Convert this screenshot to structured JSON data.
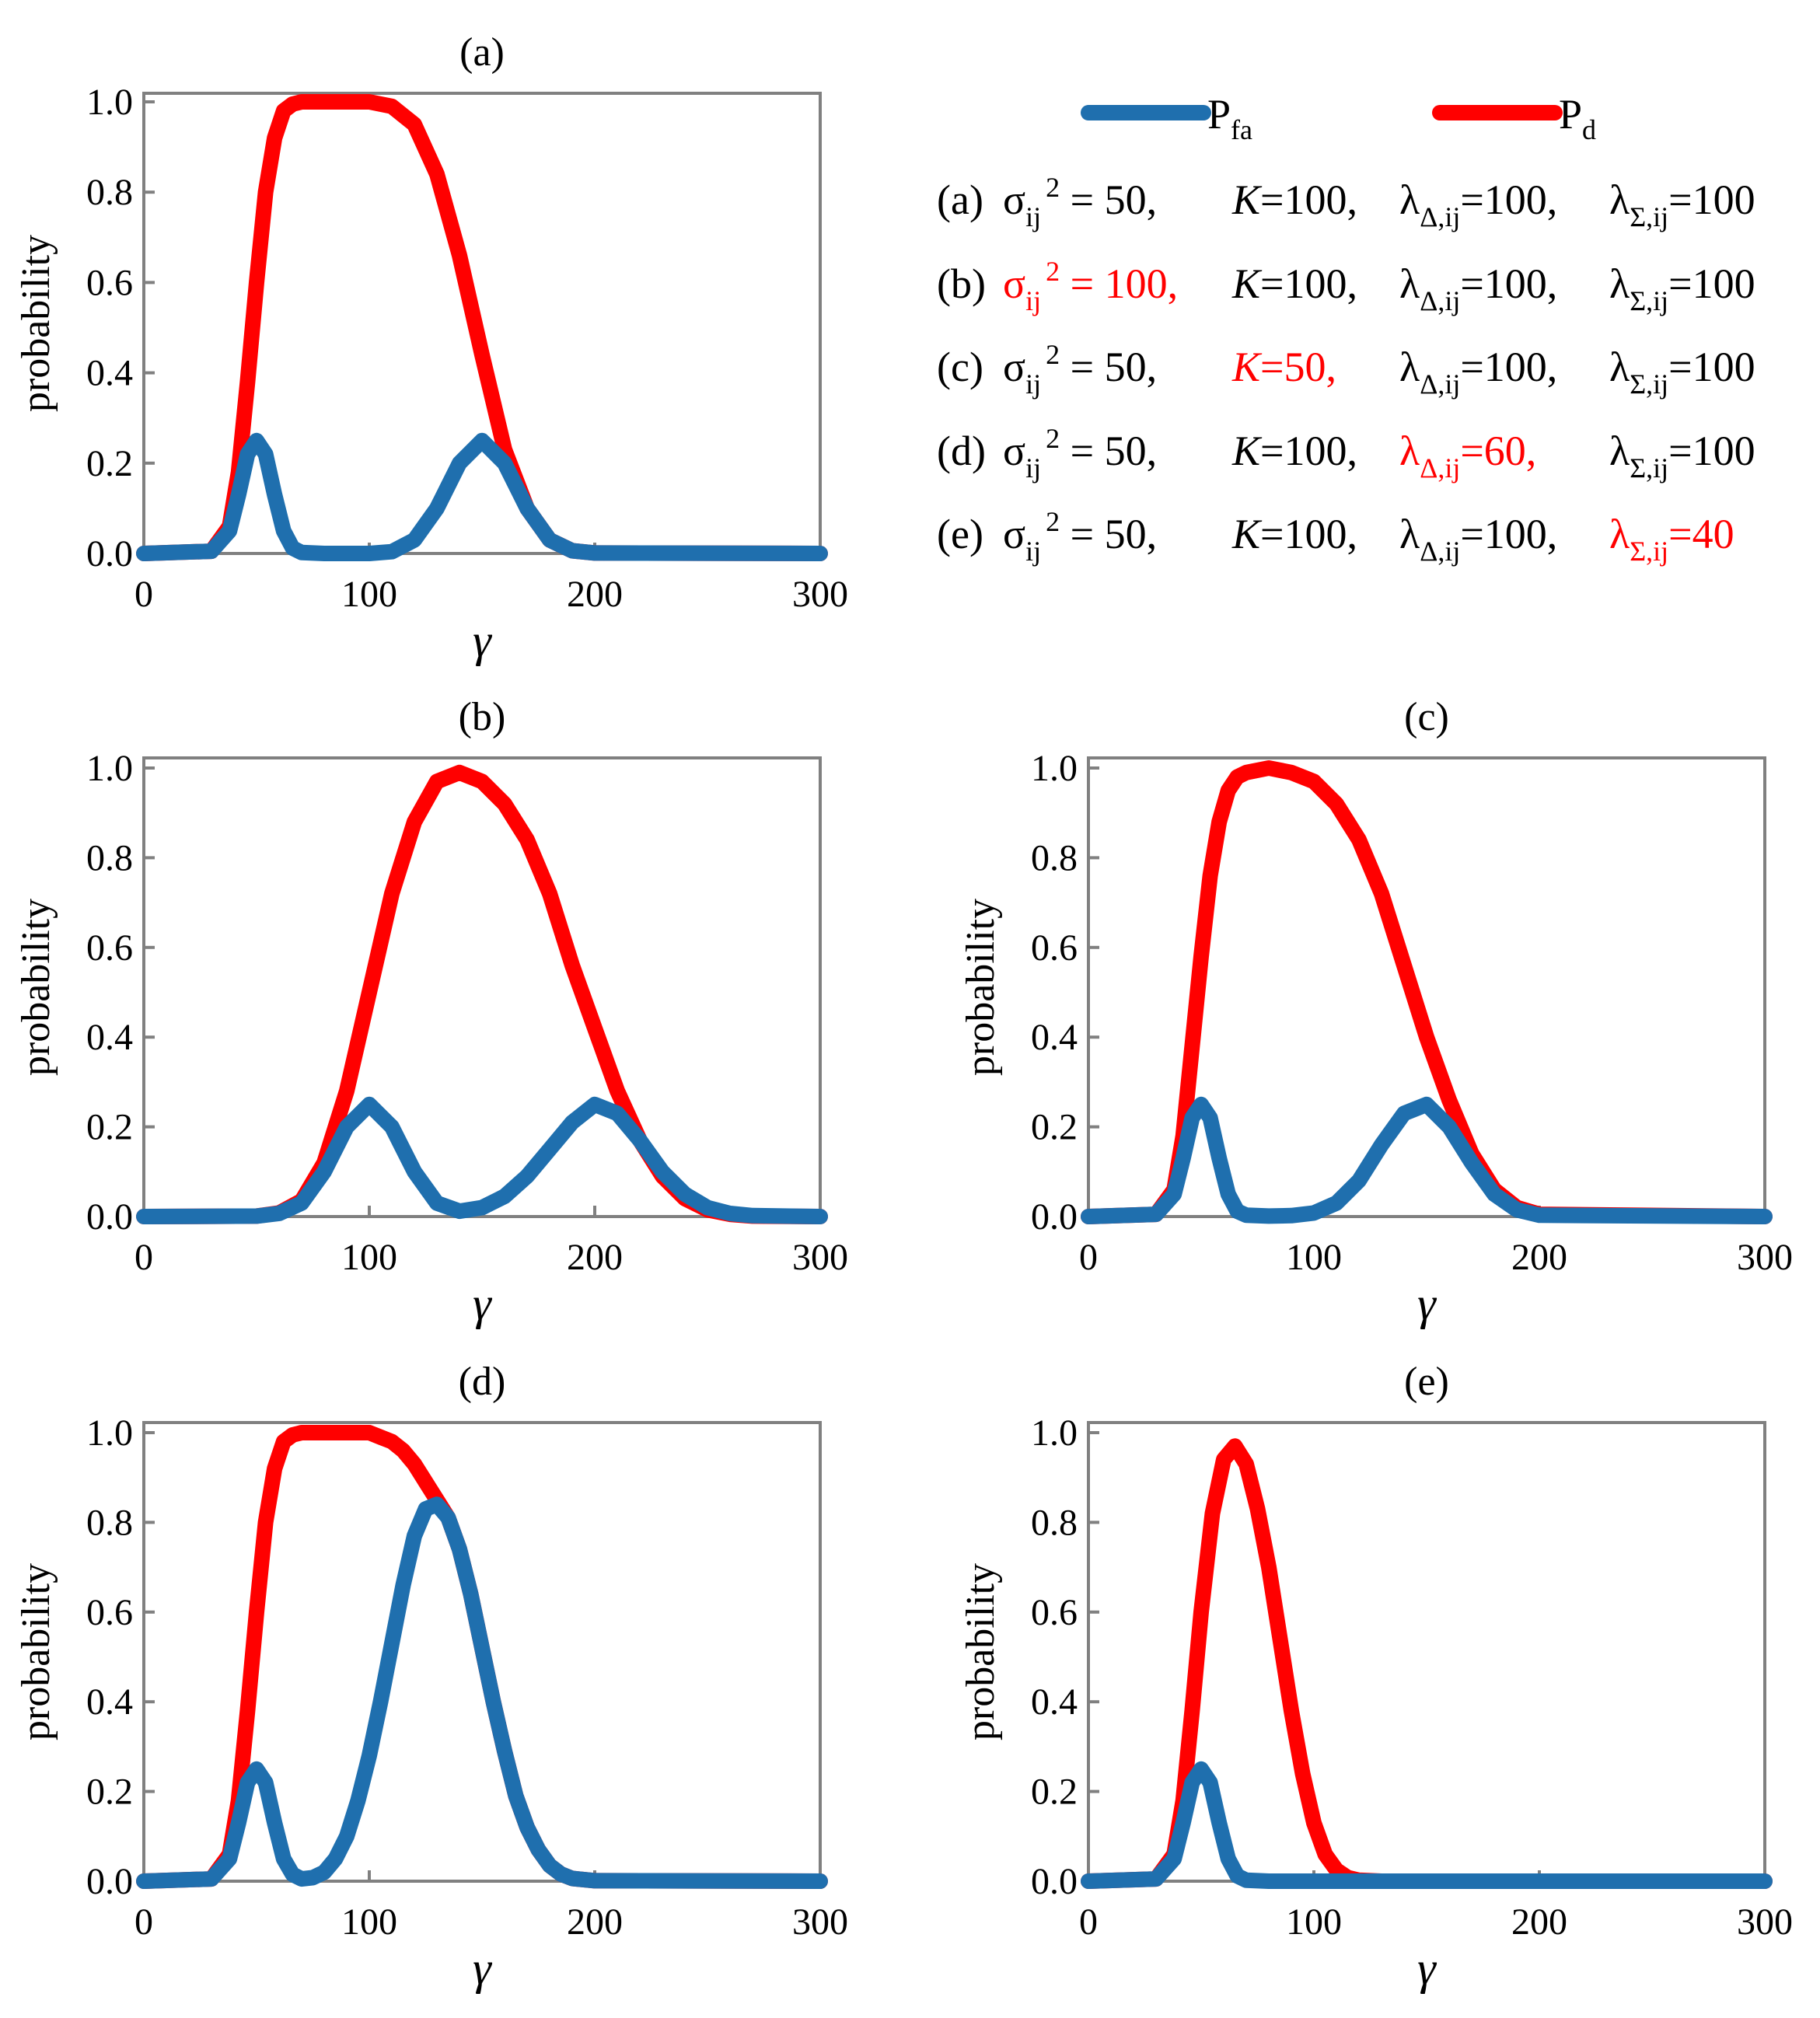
{
  "chart_data": [
    {
      "id": "a",
      "type": "line",
      "title": "(a)",
      "xlabel": "γ",
      "ylabel": "probability",
      "xlim": [
        0,
        300
      ],
      "ylim": [
        0,
        1.0
      ],
      "xticks": [
        0,
        100,
        200,
        300
      ],
      "yticks": [
        0.0,
        0.2,
        0.4,
        0.6,
        0.8,
        1.0
      ],
      "ytick_labels": [
        "0.0",
        "0.2",
        "0.4",
        "0.6",
        "0.8",
        "1.0"
      ],
      "series": [
        {
          "name": "Pfa",
          "color": "#1f6fae",
          "x": [
            0,
            30,
            38,
            42,
            46,
            50,
            54,
            58,
            62,
            66,
            70,
            80,
            90,
            100,
            110,
            120,
            130,
            140,
            150,
            160,
            170,
            180,
            190,
            200,
            300
          ],
          "y": [
            0.0,
            0.005,
            0.05,
            0.13,
            0.22,
            0.25,
            0.22,
            0.13,
            0.05,
            0.012,
            0.002,
            0.0,
            0.0,
            0.0,
            0.004,
            0.03,
            0.1,
            0.2,
            0.25,
            0.2,
            0.1,
            0.03,
            0.006,
            0.001,
            0.0
          ]
        },
        {
          "name": "Pd",
          "color": "#ff0000",
          "x": [
            0,
            30,
            38,
            42,
            46,
            50,
            54,
            58,
            62,
            66,
            70,
            80,
            90,
            100,
            110,
            120,
            130,
            140,
            150,
            160,
            170,
            180,
            190,
            200,
            300
          ],
          "y": [
            0.0,
            0.005,
            0.06,
            0.18,
            0.38,
            0.6,
            0.8,
            0.92,
            0.98,
            0.995,
            1.0,
            1.0,
            1.0,
            1.0,
            0.99,
            0.95,
            0.84,
            0.66,
            0.44,
            0.23,
            0.1,
            0.03,
            0.006,
            0.001,
            0.0
          ]
        }
      ]
    },
    {
      "id": "b",
      "type": "line",
      "title": "(b)",
      "xlabel": "γ",
      "ylabel": "probability",
      "xlim": [
        0,
        300
      ],
      "ylim": [
        0,
        1.0
      ],
      "xticks": [
        0,
        100,
        200,
        300
      ],
      "yticks": [
        0.0,
        0.2,
        0.4,
        0.6,
        0.8,
        1.0
      ],
      "ytick_labels": [
        "0.0",
        "0.2",
        "0.4",
        "0.6",
        "0.8",
        "1.0"
      ],
      "series": [
        {
          "name": "Pfa",
          "color": "#1f6fae",
          "x": [
            0,
            50,
            60,
            70,
            80,
            90,
            100,
            110,
            120,
            130,
            140,
            150,
            160,
            170,
            180,
            190,
            200,
            210,
            220,
            230,
            240,
            250,
            260,
            270,
            300
          ],
          "y": [
            0.0,
            0.001,
            0.007,
            0.03,
            0.1,
            0.2,
            0.25,
            0.2,
            0.1,
            0.03,
            0.012,
            0.02,
            0.045,
            0.09,
            0.15,
            0.21,
            0.25,
            0.23,
            0.17,
            0.1,
            0.05,
            0.02,
            0.007,
            0.002,
            0.0
          ]
        },
        {
          "name": "Pd",
          "color": "#ff0000",
          "x": [
            0,
            50,
            60,
            70,
            80,
            90,
            100,
            110,
            120,
            130,
            140,
            150,
            160,
            170,
            180,
            190,
            200,
            210,
            220,
            230,
            240,
            250,
            260,
            270,
            300
          ],
          "y": [
            0.0,
            0.001,
            0.008,
            0.035,
            0.12,
            0.28,
            0.5,
            0.72,
            0.88,
            0.97,
            0.99,
            0.97,
            0.92,
            0.84,
            0.72,
            0.56,
            0.42,
            0.28,
            0.17,
            0.09,
            0.04,
            0.015,
            0.005,
            0.001,
            0.0
          ]
        }
      ]
    },
    {
      "id": "c",
      "type": "line",
      "title": "(c)",
      "xlabel": "γ",
      "ylabel": "probability",
      "xlim": [
        0,
        300
      ],
      "ylim": [
        0,
        1.0
      ],
      "xticks": [
        0,
        100,
        200,
        300
      ],
      "yticks": [
        0.0,
        0.2,
        0.4,
        0.6,
        0.8,
        1.0
      ],
      "ytick_labels": [
        "0.0",
        "0.2",
        "0.4",
        "0.6",
        "0.8",
        "1.0"
      ],
      "series": [
        {
          "name": "Pfa",
          "color": "#1f6fae",
          "x": [
            0,
            30,
            38,
            42,
            46,
            50,
            54,
            58,
            62,
            66,
            70,
            80,
            90,
            100,
            110,
            120,
            130,
            140,
            150,
            160,
            170,
            180,
            190,
            200,
            300
          ],
          "y": [
            0.0,
            0.005,
            0.05,
            0.13,
            0.22,
            0.25,
            0.22,
            0.13,
            0.05,
            0.012,
            0.003,
            0.001,
            0.002,
            0.008,
            0.03,
            0.08,
            0.16,
            0.23,
            0.25,
            0.2,
            0.12,
            0.05,
            0.015,
            0.003,
            0.0
          ]
        },
        {
          "name": "Pd",
          "color": "#ff0000",
          "x": [
            0,
            30,
            38,
            42,
            46,
            50,
            54,
            58,
            62,
            66,
            70,
            80,
            90,
            100,
            110,
            120,
            130,
            140,
            150,
            160,
            170,
            180,
            190,
            200,
            300
          ],
          "y": [
            0.0,
            0.005,
            0.06,
            0.18,
            0.38,
            0.58,
            0.76,
            0.88,
            0.95,
            0.98,
            0.99,
            1.0,
            0.99,
            0.97,
            0.92,
            0.84,
            0.72,
            0.56,
            0.4,
            0.26,
            0.14,
            0.06,
            0.02,
            0.005,
            0.0
          ]
        }
      ]
    },
    {
      "id": "d",
      "type": "line",
      "title": "(d)",
      "xlabel": "γ",
      "ylabel": "probability",
      "xlim": [
        0,
        300
      ],
      "ylim": [
        0,
        1.0
      ],
      "xticks": [
        0,
        100,
        200,
        300
      ],
      "yticks": [
        0.0,
        0.2,
        0.4,
        0.6,
        0.8,
        1.0
      ],
      "ytick_labels": [
        "0.0",
        "0.2",
        "0.4",
        "0.6",
        "0.8",
        "1.0"
      ],
      "series": [
        {
          "name": "Pfa",
          "color": "#1f6fae",
          "x": [
            0,
            30,
            38,
            42,
            46,
            50,
            54,
            58,
            62,
            66,
            70,
            75,
            80,
            85,
            90,
            95,
            100,
            105,
            110,
            115,
            120,
            125,
            130,
            135,
            140,
            145,
            150,
            155,
            160,
            165,
            170,
            175,
            180,
            185,
            190,
            200,
            300
          ],
          "y": [
            0.0,
            0.005,
            0.05,
            0.13,
            0.22,
            0.25,
            0.22,
            0.13,
            0.05,
            0.015,
            0.005,
            0.008,
            0.02,
            0.05,
            0.1,
            0.18,
            0.28,
            0.4,
            0.53,
            0.66,
            0.77,
            0.83,
            0.84,
            0.81,
            0.74,
            0.64,
            0.52,
            0.4,
            0.29,
            0.19,
            0.12,
            0.07,
            0.035,
            0.016,
            0.006,
            0.001,
            0.0
          ]
        },
        {
          "name": "Pd",
          "color": "#ff0000",
          "x": [
            0,
            30,
            38,
            42,
            46,
            50,
            54,
            58,
            62,
            66,
            70,
            80,
            90,
            100,
            105,
            110,
            115,
            120,
            125,
            130,
            135,
            140,
            145,
            150,
            155,
            160,
            165,
            170,
            175,
            180,
            185,
            190,
            200,
            300
          ],
          "y": [
            0.0,
            0.005,
            0.06,
            0.18,
            0.38,
            0.6,
            0.8,
            0.92,
            0.98,
            0.995,
            1.0,
            1.0,
            1.0,
            1.0,
            0.99,
            0.98,
            0.96,
            0.93,
            0.89,
            0.85,
            0.81,
            0.74,
            0.64,
            0.52,
            0.4,
            0.29,
            0.19,
            0.12,
            0.07,
            0.035,
            0.016,
            0.006,
            0.001,
            0.0
          ]
        }
      ]
    },
    {
      "id": "e",
      "type": "line",
      "title": "(e)",
      "xlabel": "γ",
      "ylabel": "probability",
      "xlim": [
        0,
        300
      ],
      "ylim": [
        0,
        1.0
      ],
      "xticks": [
        0,
        100,
        200,
        300
      ],
      "yticks": [
        0.0,
        0.2,
        0.4,
        0.6,
        0.8,
        1.0
      ],
      "ytick_labels": [
        "0.0",
        "0.2",
        "0.4",
        "0.6",
        "0.8",
        "1.0"
      ],
      "series": [
        {
          "name": "Pfa",
          "color": "#1f6fae",
          "x": [
            0,
            30,
            38,
            42,
            46,
            50,
            54,
            58,
            62,
            66,
            70,
            80,
            300
          ],
          "y": [
            0.0,
            0.005,
            0.05,
            0.13,
            0.22,
            0.25,
            0.22,
            0.13,
            0.05,
            0.012,
            0.002,
            0.0,
            0.0
          ]
        },
        {
          "name": "Pd",
          "color": "#ff0000",
          "x": [
            0,
            30,
            38,
            42,
            46,
            50,
            55,
            60,
            65,
            70,
            75,
            80,
            85,
            90,
            95,
            100,
            105,
            110,
            115,
            120,
            130,
            300
          ],
          "y": [
            0.0,
            0.005,
            0.06,
            0.18,
            0.38,
            0.6,
            0.82,
            0.94,
            0.97,
            0.93,
            0.83,
            0.7,
            0.54,
            0.38,
            0.24,
            0.13,
            0.06,
            0.025,
            0.008,
            0.002,
            0.0,
            0.0
          ]
        }
      ]
    }
  ],
  "legend": {
    "pfa": {
      "main": "P",
      "sub": "fa",
      "color": "#1f6fae"
    },
    "pd": {
      "main": "P",
      "sub": "d",
      "color": "#ff0000"
    }
  },
  "params": [
    {
      "id": "a",
      "label": "(a) ",
      "sigma": "σ",
      "sigma_sub": "ij",
      "sigma_sup": "2",
      "sigma_val": " = 50,",
      "K": "K",
      "K_val": "=100,",
      "ld": "λ",
      "ld_sub": "Δ,ij",
      "ld_val": "=100,",
      "ls": "λ",
      "ls_sub": "Σ,ij",
      "ls_val": "=100",
      "red": ""
    },
    {
      "id": "b",
      "label": "(b) ",
      "sigma": "σ",
      "sigma_sub": "ij",
      "sigma_sup": "2",
      "sigma_val": " = 100,",
      "K": "K",
      "K_val": "=100,",
      "ld": "λ",
      "ld_sub": "Δ,ij",
      "ld_val": "=100,",
      "ls": "λ",
      "ls_sub": "Σ,ij",
      "ls_val": "=100",
      "red": "sigma"
    },
    {
      "id": "c",
      "label": "(c) ",
      "sigma": "σ",
      "sigma_sub": "ij",
      "sigma_sup": "2",
      "sigma_val": " = 50,",
      "K": "K",
      "K_val": "=50,",
      "ld": "λ",
      "ld_sub": "Δ,ij",
      "ld_val": "=100,",
      "ls": "λ",
      "ls_sub": "Σ,ij",
      "ls_val": "=100",
      "red": "K"
    },
    {
      "id": "d",
      "label": "(d) ",
      "sigma": "σ",
      "sigma_sub": "ij",
      "sigma_sup": "2",
      "sigma_val": " = 50,",
      "K": "K",
      "K_val": "=100,",
      "ld": "λ",
      "ld_sub": "Δ,ij",
      "ld_val": "=60,",
      "ls": "λ",
      "ls_sub": "Σ,ij",
      "ls_val": "=100",
      "red": "ld"
    },
    {
      "id": "e",
      "label": "(e) ",
      "sigma": "σ",
      "sigma_sub": "ij",
      "sigma_sup": "2",
      "sigma_val": " = 50,",
      "K": "K",
      "K_val": "=100,",
      "ld": "λ",
      "ld_sub": "Δ,ij",
      "ld_val": "=100,",
      "ls": "λ",
      "ls_sub": "Σ,ij",
      "ls_val": "=40",
      "red": "ls"
    }
  ]
}
